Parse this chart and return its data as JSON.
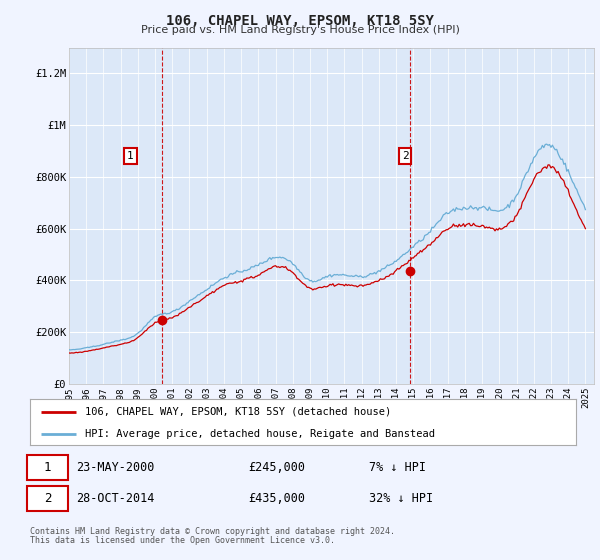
{
  "title": "106, CHAPEL WAY, EPSOM, KT18 5SY",
  "subtitle": "Price paid vs. HM Land Registry's House Price Index (HPI)",
  "ylabel_ticks": [
    "£0",
    "£200K",
    "£400K",
    "£600K",
    "£800K",
    "£1M",
    "£1.2M"
  ],
  "ytick_values": [
    0,
    200000,
    400000,
    600000,
    800000,
    1000000,
    1200000
  ],
  "ylim": [
    0,
    1300000
  ],
  "xlim_start": 1995.0,
  "xlim_end": 2025.5,
  "bg_color": "#f0f4ff",
  "plot_bg_color": "#dce8f8",
  "grid_color": "#ffffff",
  "line1_color": "#cc0000",
  "line2_color": "#6aaed6",
  "dashed_color": "#cc0000",
  "purchase1_x": 2000.38,
  "purchase1_y": 245000,
  "purchase2_x": 2014.83,
  "purchase2_y": 435000,
  "legend_line1": "106, CHAPEL WAY, EPSOM, KT18 5SY (detached house)",
  "legend_line2": "HPI: Average price, detached house, Reigate and Banstead",
  "annotation1_label": "1",
  "annotation2_label": "2",
  "table_row1": [
    "1",
    "23-MAY-2000",
    "£245,000",
    "7% ↓ HPI"
  ],
  "table_row2": [
    "2",
    "28-OCT-2014",
    "£435,000",
    "32% ↓ HPI"
  ],
  "footer1": "Contains HM Land Registry data © Crown copyright and database right 2024.",
  "footer2": "This data is licensed under the Open Government Licence v3.0."
}
